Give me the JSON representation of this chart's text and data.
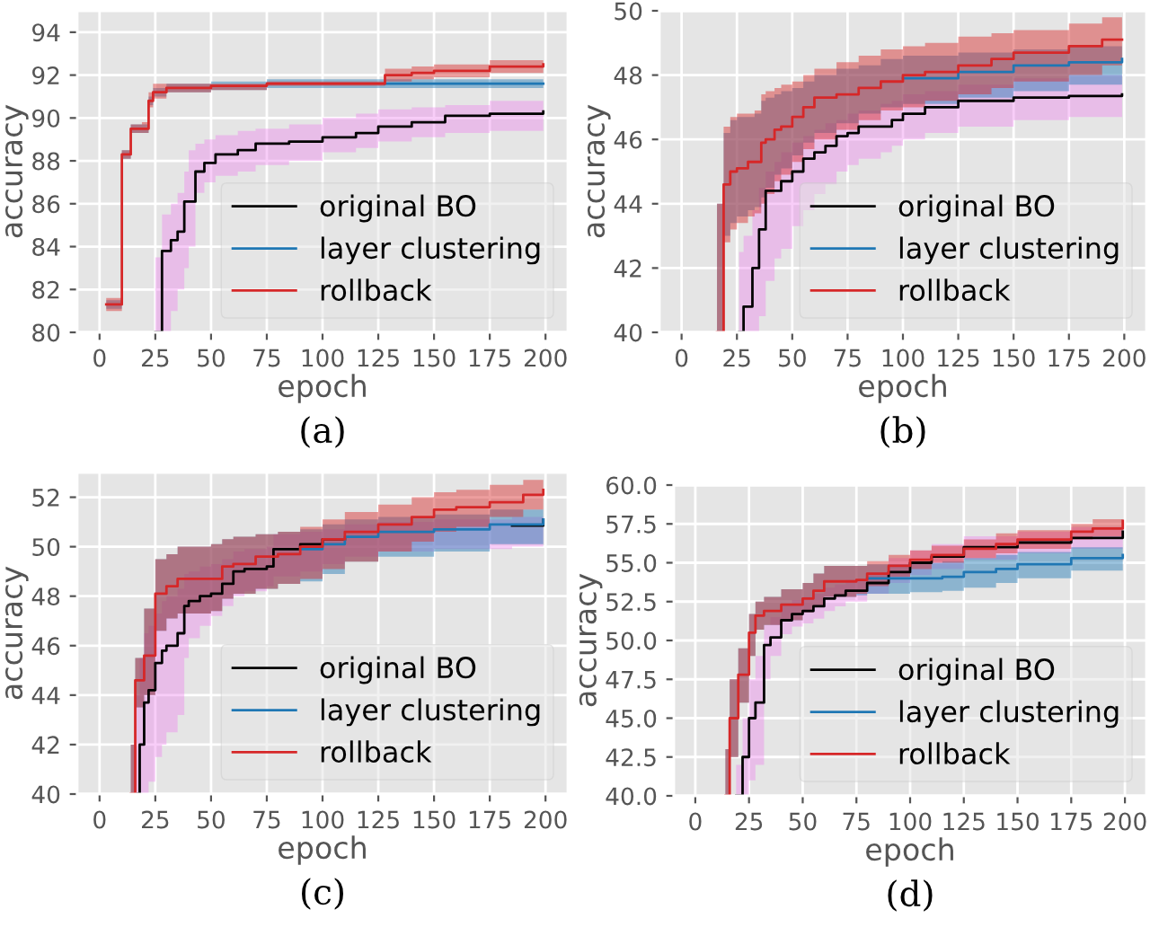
{
  "chart_data": [
    {
      "type": "step",
      "xlabel": "epoch",
      "ylabel": "accuracy",
      "xlim": [
        -10,
        210
      ],
      "xticks": [
        0,
        25,
        50,
        75,
        100,
        125,
        150,
        175,
        200
      ],
      "ylim": [
        80,
        95
      ],
      "yticks": [
        80,
        82,
        84,
        86,
        88,
        90,
        92,
        94
      ],
      "grid": true,
      "legend": "bottom right",
      "annotations": [
        "(a)"
      ],
      "series": [
        {
          "name": "original BO",
          "color": "#000000",
          "x": [
            25,
            28,
            32,
            35,
            38,
            40,
            43,
            47,
            52,
            62,
            70,
            85,
            100,
            115,
            125,
            140,
            155,
            175,
            199
          ],
          "values": [
            80,
            83.8,
            84.3,
            84.7,
            86.1,
            86.1,
            87.5,
            87.9,
            88.3,
            88.5,
            88.8,
            88.9,
            89.1,
            89.3,
            89.6,
            89.8,
            90.1,
            90.2,
            90.3
          ],
          "upper": [
            83.5,
            85.5,
            86,
            86.5,
            87.5,
            88.5,
            88.8,
            89,
            89.2,
            89.4,
            89.5,
            89.7,
            90,
            90.2,
            90.4,
            90.5,
            90.6,
            90.8,
            91.2
          ],
          "lower": [
            80,
            80,
            81,
            82,
            83,
            84,
            86.5,
            87,
            87.3,
            87.5,
            87.8,
            88,
            88.4,
            88.6,
            88.9,
            89.1,
            89.3,
            89.4,
            89.4
          ]
        },
        {
          "name": "layer clustering",
          "color": "#1f77b4",
          "x": [
            3,
            9,
            10,
            14,
            19,
            22,
            24,
            30,
            50,
            75,
            128,
            150,
            199
          ],
          "values": [
            null,
            null,
            null,
            null,
            null,
            null,
            null,
            null,
            null,
            null,
            91.6,
            91.6,
            91.6
          ],
          "upper": [
            81.5,
            81.5,
            88.5,
            89.7,
            89.7,
            91.0,
            91.4,
            91.6,
            91.7,
            91.8,
            91.8,
            91.8,
            91.8
          ],
          "lower": [
            81.1,
            81.1,
            88.1,
            89.3,
            89.3,
            90.6,
            91.0,
            91.2,
            91.3,
            91.4,
            91.4,
            91.4,
            91.4
          ]
        },
        {
          "name": "rollback",
          "color": "#d62728",
          "x": [
            3,
            9,
            10,
            14,
            19,
            22,
            24,
            30,
            50,
            75,
            124,
            128,
            140,
            150,
            175,
            199
          ],
          "values": [
            81.3,
            81.3,
            88.3,
            89.5,
            89.5,
            90.8,
            91.2,
            91.4,
            91.5,
            91.6,
            91.6,
            92.0,
            92.1,
            92.2,
            92.4,
            92.5
          ],
          "upper": [
            81.6,
            81.6,
            88.5,
            89.7,
            89.8,
            91.2,
            91.6,
            91.6,
            91.6,
            91.7,
            91.7,
            92.3,
            92.4,
            92.5,
            92.7,
            92.8
          ],
          "lower": [
            81.0,
            81.0,
            88.1,
            89.3,
            89.3,
            90.5,
            90.9,
            91.2,
            91.3,
            91.5,
            91.5,
            91.7,
            91.8,
            91.9,
            92.1,
            92.2
          ]
        }
      ]
    },
    {
      "type": "step",
      "xlabel": "epoch",
      "ylabel": "accuracy",
      "xlim": [
        -10,
        210
      ],
      "xticks": [
        0,
        25,
        50,
        75,
        100,
        125,
        150,
        175,
        200
      ],
      "ylim": [
        40,
        50
      ],
      "yticks": [
        40,
        42,
        44,
        46,
        48,
        50
      ],
      "grid": true,
      "legend": "bottom right",
      "annotations": [
        "(b)"
      ],
      "series": [
        {
          "name": "original BO",
          "color": "#000000",
          "x": [
            26,
            28,
            32,
            35,
            38,
            42,
            45,
            50,
            55,
            60,
            65,
            70,
            75,
            80,
            90,
            95,
            100,
            110,
            125,
            150,
            175,
            199
          ],
          "values": [
            40,
            40.8,
            42,
            43.2,
            44.4,
            44.4,
            44.7,
            45.0,
            45.4,
            45.6,
            45.8,
            46.1,
            46.2,
            46.4,
            46.4,
            46.6,
            46.8,
            47.0,
            47.2,
            47.3,
            47.35,
            47.4
          ],
          "upper": [
            42.5,
            43,
            43.8,
            44.5,
            45,
            45.3,
            45.6,
            45.9,
            46.1,
            46.3,
            46.5,
            46.6,
            46.8,
            46.9,
            47.1,
            47.2,
            47.4,
            47.5,
            47.7,
            47.9,
            48.0,
            48.0
          ],
          "lower": [
            40,
            40,
            40,
            40.5,
            41.6,
            42.3,
            42.6,
            43.3,
            43.8,
            44.3,
            44.6,
            45,
            45.2,
            45.4,
            45.6,
            45.8,
            46.0,
            46.2,
            46.4,
            46.6,
            46.7,
            46.7
          ]
        },
        {
          "name": "layer clustering",
          "color": "#1f77b4",
          "x": [
            16,
            19,
            22,
            25,
            30,
            33,
            36,
            38,
            42,
            45,
            50,
            55,
            60,
            70,
            80,
            90,
            100,
            125,
            150,
            175,
            199
          ],
          "values": [
            null,
            null,
            null,
            null,
            null,
            null,
            null,
            null,
            null,
            null,
            null,
            null,
            null,
            null,
            null,
            null,
            47.9,
            48.1,
            48.3,
            48.4,
            48.5
          ],
          "upper": [
            44,
            46.2,
            46.6,
            46.7,
            46.7,
            46.8,
            47.2,
            47.3,
            47.4,
            47.5,
            47.6,
            47.8,
            48.0,
            48.2,
            48.3,
            48.5,
            48.6,
            48.7,
            48.8,
            48.9,
            49.0
          ],
          "lower": [
            40,
            43,
            43.4,
            43.6,
            43.8,
            43.9,
            44.2,
            44.5,
            44.9,
            45.1,
            45.5,
            45.9,
            46.2,
            46.5,
            46.8,
            47.0,
            47.1,
            47.3,
            47.5,
            47.7,
            47.8
          ]
        },
        {
          "name": "rollback",
          "color": "#d62728",
          "x": [
            16,
            19,
            22,
            25,
            30,
            33,
            36,
            38,
            42,
            45,
            50,
            55,
            60,
            70,
            80,
            90,
            100,
            110,
            125,
            140,
            150,
            175,
            190,
            199
          ],
          "values": [
            40,
            44.6,
            45.0,
            45.1,
            45.3,
            45.3,
            45.9,
            46.0,
            46.3,
            46.4,
            46.7,
            47.0,
            47.3,
            47.4,
            47.6,
            47.8,
            48.0,
            48.1,
            48.3,
            48.5,
            48.7,
            48.9,
            49.1,
            49.1
          ],
          "upper": [
            44,
            46.4,
            46.7,
            46.8,
            46.8,
            46.9,
            47.4,
            47.5,
            47.6,
            47.7,
            47.8,
            48.0,
            48.2,
            48.4,
            48.6,
            48.8,
            48.9,
            49.0,
            49.2,
            49.3,
            49.4,
            49.6,
            49.8,
            49.8
          ],
          "lower": [
            40,
            42.8,
            43.2,
            43.4,
            43.6,
            43.7,
            44.0,
            44.3,
            44.7,
            44.9,
            45.3,
            45.7,
            46.0,
            46.3,
            46.6,
            46.9,
            47.0,
            47.2,
            47.4,
            47.6,
            47.8,
            48.0,
            48.3,
            48.3
          ]
        }
      ]
    },
    {
      "type": "step",
      "xlabel": "epoch",
      "ylabel": "accuracy",
      "xlim": [
        -10,
        210
      ],
      "xticks": [
        0,
        25,
        50,
        75,
        100,
        125,
        150,
        175,
        200
      ],
      "ylim": [
        40,
        53
      ],
      "yticks": [
        40,
        42,
        44,
        46,
        48,
        50,
        52
      ],
      "grid": true,
      "legend": "bottom right",
      "annotations": [
        "(c)"
      ],
      "series": [
        {
          "name": "original BO",
          "color": "#000000",
          "x": [
            16,
            18,
            20,
            22,
            25,
            28,
            30,
            35,
            38,
            40,
            45,
            50,
            55,
            60,
            65,
            75,
            78,
            90,
            100,
            110,
            125,
            150,
            185,
            199
          ],
          "values": [
            40,
            42,
            43.7,
            44.2,
            45.3,
            45.8,
            46.0,
            46.5,
            47.6,
            47.8,
            48.0,
            48.1,
            48.5,
            49.0,
            49.1,
            49.2,
            49.9,
            50.1,
            50.3,
            null,
            null,
            null,
            50.85,
            51.1
          ],
          "upper": [
            44,
            45.5,
            46.5,
            46.8,
            47.3,
            47.8,
            48.0,
            48.3,
            48.9,
            49.0,
            49.2,
            49.3,
            49.5,
            49.8,
            49.9,
            50.0,
            50.5,
            50.6,
            50.7,
            50.9,
            51.0,
            51.1,
            51.2,
            51.5
          ],
          "lower": [
            40,
            40,
            40,
            40.5,
            41.5,
            42,
            42.5,
            43.2,
            45.5,
            46.3,
            46.8,
            47.2,
            47.6,
            48.0,
            48.2,
            48.4,
            48.8,
            49.0,
            49.3,
            49.6,
            49.8,
            49.9,
            50.0,
            50.1
          ]
        },
        {
          "name": "layer clustering",
          "color": "#1f77b4",
          "x": [
            14,
            16,
            20,
            25,
            30,
            35,
            50,
            55,
            60,
            70,
            80,
            90,
            100,
            110,
            125,
            150,
            175,
            199
          ],
          "values": [
            null,
            null,
            null,
            null,
            null,
            null,
            null,
            null,
            null,
            null,
            null,
            49.9,
            50.1,
            50.4,
            50.6,
            50.7,
            50.9,
            51.1
          ],
          "upper": [
            42,
            45.5,
            47.5,
            49.5,
            49.7,
            50.0,
            50.1,
            50.3,
            50.4,
            50.5,
            50.6,
            50.7,
            50.9,
            51.1,
            51.2,
            51.3,
            51.5,
            51.7
          ],
          "lower": [
            40,
            43.5,
            44,
            46.6,
            47.1,
            47.3,
            47.4,
            47.9,
            48.1,
            48.3,
            48.5,
            48.6,
            48.9,
            49.4,
            49.6,
            49.8,
            50.1,
            50.3
          ]
        },
        {
          "name": "rollback",
          "color": "#d62728",
          "x": [
            14,
            16,
            20,
            25,
            30,
            35,
            50,
            55,
            60,
            70,
            80,
            90,
            100,
            110,
            125,
            140,
            150,
            160,
            175,
            190,
            199
          ],
          "values": [
            40,
            44.6,
            45.6,
            48.1,
            48.4,
            48.7,
            48.7,
            49.2,
            49.3,
            49.6,
            49.7,
            50.0,
            50.3,
            50.6,
            50.9,
            51.2,
            51.5,
            51.6,
            51.8,
            52.1,
            52.3
          ],
          "upper": [
            42,
            45.5,
            47.5,
            49.5,
            49.7,
            50.0,
            50.1,
            50.3,
            50.4,
            50.5,
            50.6,
            50.8,
            51.1,
            51.4,
            51.7,
            52.0,
            52.2,
            52.3,
            52.5,
            52.7,
            52.9
          ],
          "lower": [
            40,
            43.5,
            44,
            46.6,
            47.1,
            47.3,
            47.4,
            47.9,
            48.1,
            48.3,
            48.5,
            48.7,
            49.1,
            49.4,
            49.8,
            50.2,
            50.6,
            50.8,
            51.2,
            51.5,
            51.8
          ]
        }
      ]
    },
    {
      "type": "step",
      "xlabel": "epoch",
      "ylabel": "accuracy",
      "xlim": [
        -10,
        210
      ],
      "xticks": [
        0,
        25,
        50,
        75,
        100,
        125,
        150,
        175,
        200
      ],
      "ylim": [
        40,
        60
      ],
      "yticks": [
        {
          "value": 40,
          "label": "40.0"
        },
        {
          "value": 42.5,
          "label": "42.5"
        },
        {
          "value": 45,
          "label": "45.0"
        },
        {
          "value": 47.5,
          "label": "47.5"
        },
        {
          "value": 50,
          "label": "50.0"
        },
        {
          "value": 52.5,
          "label": "52.5"
        },
        {
          "value": 55,
          "label": "55.0"
        },
        {
          "value": 57.5,
          "label": "57.5"
        },
        {
          "value": 60,
          "label": "60.0"
        }
      ],
      "grid": true,
      "legend": "bottom right",
      "annotations": [
        "(d)"
      ],
      "series": [
        {
          "name": "original BO",
          "color": "#000000",
          "x": [
            19,
            22,
            25,
            28,
            32,
            35,
            40,
            45,
            50,
            55,
            60,
            65,
            70,
            80,
            90,
            100,
            110,
            125,
            150,
            175,
            199
          ],
          "values": [
            40,
            42.5,
            45,
            46,
            49.7,
            50.2,
            51.3,
            51.7,
            51.9,
            52.2,
            52.7,
            52.9,
            53.2,
            53.7,
            54.4,
            55.0,
            55.4,
            56.0,
            56.3,
            56.6,
            57.0
          ],
          "upper": [
            42,
            45,
            47.5,
            49,
            51,
            51.5,
            52.3,
            52.6,
            52.8,
            53.0,
            53.4,
            53.6,
            53.9,
            54.4,
            55.3,
            55.8,
            56.2,
            56.7,
            57.0,
            57.3,
            57.5
          ],
          "lower": [
            40,
            40,
            41,
            42,
            47.5,
            49,
            50.4,
            50.9,
            51.1,
            51.4,
            51.9,
            52.2,
            52.5,
            53.0,
            53.7,
            54.2,
            54.6,
            55.2,
            55.6,
            55.9,
            56.2
          ]
        },
        {
          "name": "layer clustering",
          "color": "#1f77b4",
          "x": [
            14,
            16,
            20,
            25,
            28,
            32,
            40,
            50,
            55,
            60,
            75,
            80,
            100,
            115,
            125,
            140,
            150,
            175,
            199
          ],
          "values": [
            null,
            null,
            null,
            null,
            null,
            null,
            null,
            null,
            null,
            null,
            null,
            54.0,
            54.0,
            54.1,
            54.4,
            54.6,
            54.9,
            55.3,
            55.5
          ],
          "upper": [
            43,
            47.5,
            49.5,
            51.7,
            52.5,
            52.8,
            53.3,
            53.7,
            54.3,
            54.8,
            54.8,
            54.9,
            55.0,
            55.1,
            55.3,
            55.5,
            55.7,
            56.0,
            56.2
          ],
          "lower": [
            40,
            42.5,
            46,
            49,
            50.7,
            51.0,
            51.3,
            51.8,
            52.2,
            52.8,
            52.9,
            53.0,
            53.1,
            53.2,
            53.4,
            53.7,
            54.0,
            54.5,
            54.7
          ]
        },
        {
          "name": "rollback",
          "color": "#d62728",
          "x": [
            14,
            16,
            20,
            25,
            28,
            32,
            40,
            50,
            55,
            60,
            75,
            80,
            90,
            100,
            110,
            125,
            140,
            150,
            175,
            185,
            199
          ],
          "values": [
            40,
            45,
            47.8,
            50.5,
            51.6,
            51.9,
            52.3,
            52.7,
            53.2,
            53.8,
            53.9,
            54.3,
            54.8,
            55.2,
            55.5,
            55.9,
            56.2,
            56.5,
            57.0,
            57.2,
            57.7
          ],
          "upper": [
            43,
            47.5,
            49.5,
            51.7,
            52.5,
            52.8,
            53.3,
            53.7,
            54.3,
            54.8,
            54.8,
            55.1,
            55.5,
            55.8,
            56.1,
            56.5,
            56.9,
            57.1,
            57.5,
            57.8,
            58.3
          ],
          "lower": [
            40,
            42.5,
            46,
            49,
            50.7,
            51.0,
            51.3,
            51.8,
            52.2,
            52.8,
            53.0,
            53.5,
            54.1,
            54.6,
            55.0,
            55.3,
            55.6,
            55.9,
            56.5,
            56.7,
            57.1
          ]
        }
      ]
    }
  ]
}
